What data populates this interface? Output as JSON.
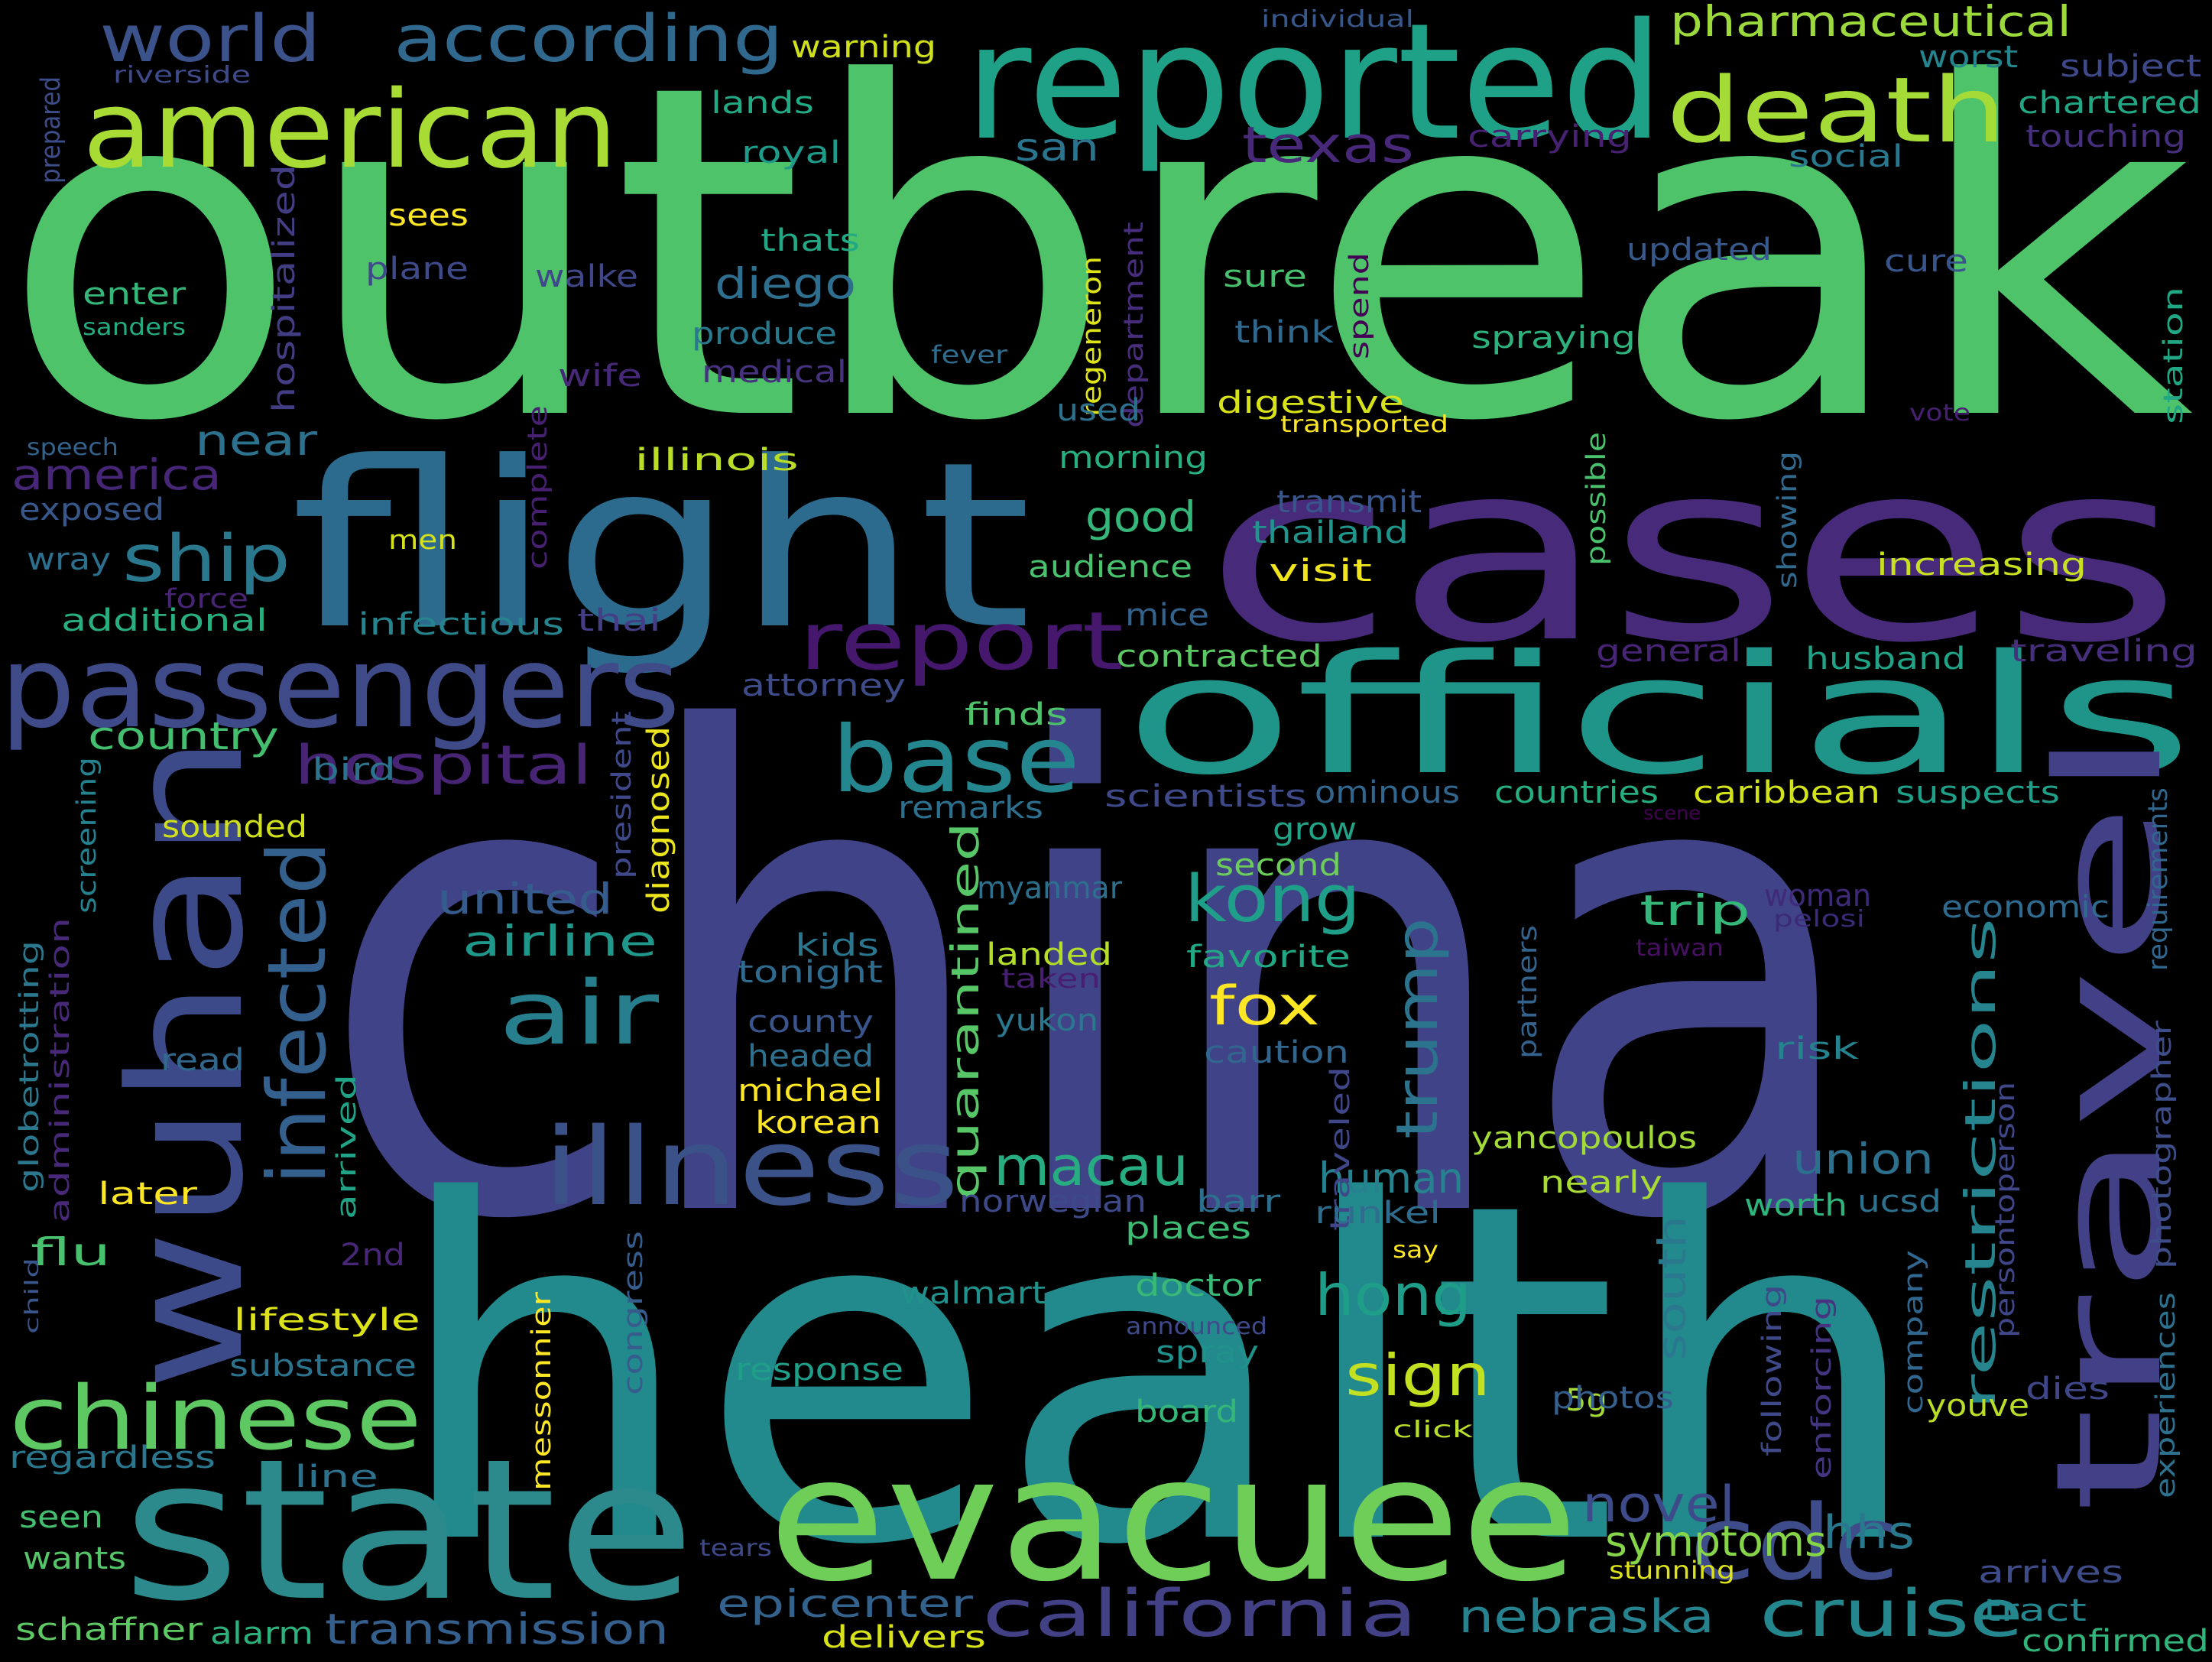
{
  "background": "#000000",
  "words": [
    {
      "text": "outbreak",
      "color": "#4fc36a"
    },
    {
      "text": "china",
      "color": "#414388"
    },
    {
      "text": "health",
      "color": "#228a8c"
    },
    {
      "text": "cases",
      "color": "#472a7a"
    },
    {
      "text": "officials",
      "color": "#1f958a"
    },
    {
      "text": "flight",
      "color": "#2c6b8d"
    },
    {
      "text": "reported",
      "color": "#1fa187"
    },
    {
      "text": "evacuee",
      "color": "#6ece58"
    },
    {
      "text": "state",
      "color": "#2c8a8c"
    },
    {
      "text": "wuhan",
      "color": "#3d4a8a"
    },
    {
      "text": "travel",
      "color": "#424086"
    },
    {
      "text": "passengers",
      "color": "#3f4a89"
    },
    {
      "text": "american",
      "color": "#a8db34"
    },
    {
      "text": "death",
      "color": "#a5db36"
    },
    {
      "text": "infected",
      "color": "#34608d"
    },
    {
      "text": "illness",
      "color": "#3b5289"
    },
    {
      "text": "chinese",
      "color": "#5ec962"
    },
    {
      "text": "report",
      "color": "#46186d"
    },
    {
      "text": "base",
      "color": "#24868e"
    },
    {
      "text": "air",
      "color": "#277f8e"
    },
    {
      "text": "cdc",
      "color": "#3e4c8a"
    },
    {
      "text": "california",
      "color": "#424186"
    },
    {
      "text": "cruise",
      "color": "#24878e"
    },
    {
      "text": "world",
      "color": "#3b528b"
    },
    {
      "text": "according",
      "color": "#31688e"
    },
    {
      "text": "hospital",
      "color": "#482475"
    },
    {
      "text": "ship",
      "color": "#2a788e"
    },
    {
      "text": "kong",
      "color": "#1f9e89"
    },
    {
      "text": "trump",
      "color": "#2c738e"
    },
    {
      "text": "macau",
      "color": "#27ad81"
    },
    {
      "text": "hong",
      "color": "#1e9d89"
    },
    {
      "text": "sign",
      "color": "#c3e021"
    },
    {
      "text": "novel",
      "color": "#3e4b8a"
    },
    {
      "text": "hhs",
      "color": "#2a788e"
    },
    {
      "text": "nebraska",
      "color": "#26828e"
    },
    {
      "text": "restrictions",
      "color": "#25848e"
    },
    {
      "text": "quarantined",
      "color": "#56c667"
    },
    {
      "text": "fox",
      "color": "#fde725"
    },
    {
      "text": "texas",
      "color": "#482878"
    },
    {
      "text": "pharmaceutical",
      "color": "#9bd93c"
    },
    {
      "text": "san",
      "color": "#2b748e"
    },
    {
      "text": "diego",
      "color": "#2e6e8e"
    },
    {
      "text": "good",
      "color": "#35b779"
    },
    {
      "text": "country",
      "color": "#44bf70"
    },
    {
      "text": "united",
      "color": "#365c8d"
    },
    {
      "text": "airline",
      "color": "#1f988b"
    },
    {
      "text": "trip",
      "color": "#35b779"
    },
    {
      "text": "human",
      "color": "#26828e"
    },
    {
      "text": "south",
      "color": "#2a788e"
    },
    {
      "text": "union",
      "color": "#2d708e"
    },
    {
      "text": "symptoms",
      "color": "#86d549"
    },
    {
      "text": "epicenter",
      "color": "#33628d"
    },
    {
      "text": "transmission",
      "color": "#355f8d"
    },
    {
      "text": "america",
      "color": "#482677"
    },
    {
      "text": "near",
      "color": "#2c728e"
    },
    {
      "text": "flu",
      "color": "#48c16e"
    },
    {
      "text": "warning",
      "color": "#d0e11c"
    },
    {
      "text": "lands",
      "color": "#23a983"
    },
    {
      "text": "royal",
      "color": "#1e9b8a"
    },
    {
      "text": "worst",
      "color": "#25858e"
    },
    {
      "text": "subject",
      "color": "#3e4989"
    },
    {
      "text": "chartered",
      "color": "#22a785"
    },
    {
      "text": "touching",
      "color": "#46307e"
    },
    {
      "text": "social",
      "color": "#2a788e"
    },
    {
      "text": "carrying",
      "color": "#482173"
    },
    {
      "text": "individual",
      "color": "#38588c"
    },
    {
      "text": "riverside",
      "color": "#3e4a89"
    },
    {
      "text": "prepared",
      "color": "#3d4d8a"
    },
    {
      "text": "hospitalized",
      "color": "#433d84"
    },
    {
      "text": "sees",
      "color": "#fde725"
    },
    {
      "text": "thats",
      "color": "#22a884"
    },
    {
      "text": "plane",
      "color": "#3e4a89"
    },
    {
      "text": "walke",
      "color": "#3f4788"
    },
    {
      "text": "enter",
      "color": "#35b779"
    },
    {
      "text": "sanders",
      "color": "#25ab82"
    },
    {
      "text": "produce",
      "color": "#29798e"
    },
    {
      "text": "fever",
      "color": "#2f6c8e"
    },
    {
      "text": "medical",
      "color": "#46327e"
    },
    {
      "text": "wife",
      "color": "#482878"
    },
    {
      "text": "updated",
      "color": "#38598c"
    },
    {
      "text": "cure",
      "color": "#39568c"
    },
    {
      "text": "sure",
      "color": "#48c16e"
    },
    {
      "text": "think",
      "color": "#30698e"
    },
    {
      "text": "spend",
      "color": "#440154"
    },
    {
      "text": "regeneron",
      "color": "#dde318"
    },
    {
      "text": "department",
      "color": "#472d7b"
    },
    {
      "text": "spraying",
      "color": "#2db27d"
    },
    {
      "text": "station",
      "color": "#22a785"
    },
    {
      "text": "used",
      "color": "#2c718e"
    },
    {
      "text": "digestive",
      "color": "#d8e219"
    },
    {
      "text": "transported",
      "color": "#fde725"
    },
    {
      "text": "vote",
      "color": "#482071"
    },
    {
      "text": "speech",
      "color": "#33638d"
    },
    {
      "text": "illinois",
      "color": "#bade28"
    },
    {
      "text": "morning",
      "color": "#29af7f"
    },
    {
      "text": "complete",
      "color": "#482071"
    },
    {
      "text": "possible",
      "color": "#4ac16d"
    },
    {
      "text": "showing",
      "color": "#31688e"
    },
    {
      "text": "exposed",
      "color": "#38588c"
    },
    {
      "text": "men",
      "color": "#d5e21a"
    },
    {
      "text": "transmit",
      "color": "#39568c"
    },
    {
      "text": "thailand",
      "color": "#1f958b"
    },
    {
      "text": "wray",
      "color": "#2d708e"
    },
    {
      "text": "visit",
      "color": "#f1e51d"
    },
    {
      "text": "audience",
      "color": "#4ac16d"
    },
    {
      "text": "increasing",
      "color": "#c8e020"
    },
    {
      "text": "force",
      "color": "#482475"
    },
    {
      "text": "additional",
      "color": "#29af7f"
    },
    {
      "text": "infectious",
      "color": "#25848e"
    },
    {
      "text": "thai",
      "color": "#433e85"
    },
    {
      "text": "mice",
      "color": "#33638d"
    },
    {
      "text": "contracted",
      "color": "#5cc863"
    },
    {
      "text": "general",
      "color": "#482576"
    },
    {
      "text": "husband",
      "color": "#20a386"
    },
    {
      "text": "traveling",
      "color": "#472f7d"
    },
    {
      "text": "attorney",
      "color": "#3e4c8a"
    },
    {
      "text": "finds",
      "color": "#4ec36b"
    },
    {
      "text": "president",
      "color": "#3f4889"
    },
    {
      "text": "diagnosed",
      "color": "#ece51b"
    },
    {
      "text": "screening",
      "color": "#26818e"
    },
    {
      "text": "bird",
      "color": "#2c738e"
    },
    {
      "text": "sounded",
      "color": "#d0e11c"
    },
    {
      "text": "remarks",
      "color": "#2d708e"
    },
    {
      "text": "scientists",
      "color": "#3e4a89"
    },
    {
      "text": "ominous",
      "color": "#31668e"
    },
    {
      "text": "countries",
      "color": "#26ad81"
    },
    {
      "text": "caribbean",
      "color": "#d2e21b"
    },
    {
      "text": "suspects",
      "color": "#1f9f88"
    },
    {
      "text": "scene",
      "color": "#440154"
    },
    {
      "text": "grow",
      "color": "#20a386"
    },
    {
      "text": "second",
      "color": "#6ccd5a"
    },
    {
      "text": "myanmar",
      "color": "#2d708e"
    },
    {
      "text": "woman",
      "color": "#3f2a7a"
    },
    {
      "text": "pelosi",
      "color": "#3b2a78"
    },
    {
      "text": "economic",
      "color": "#2f6b8e"
    },
    {
      "text": "taiwan",
      "color": "#471063"
    },
    {
      "text": "requirements",
      "color": "#31668e"
    },
    {
      "text": "globetrotting",
      "color": "#2a778e"
    },
    {
      "text": "administration",
      "color": "#482878"
    },
    {
      "text": "kids",
      "color": "#2a768e"
    },
    {
      "text": "tonight",
      "color": "#2f6b8e"
    },
    {
      "text": "landed",
      "color": "#b5de2b"
    },
    {
      "text": "favorite",
      "color": "#22a884"
    },
    {
      "text": "taken",
      "color": "#481f70"
    },
    {
      "text": "partners",
      "color": "#33638d"
    },
    {
      "text": "county",
      "color": "#3a548c"
    },
    {
      "text": "headed",
      "color": "#2d718e"
    },
    {
      "text": "yukon",
      "color": "#2a778e"
    },
    {
      "text": "caution",
      "color": "#31668e"
    },
    {
      "text": "risk",
      "color": "#25838e"
    },
    {
      "text": "read",
      "color": "#31688e"
    },
    {
      "text": "michael",
      "color": "#fde725"
    },
    {
      "text": "korean",
      "color": "#fde725"
    },
    {
      "text": "arrived",
      "color": "#20a386"
    },
    {
      "text": "traveled",
      "color": "#3f4788"
    },
    {
      "text": "yancopoulos",
      "color": "#a2da37"
    },
    {
      "text": "photographer",
      "color": "#3d4d8a"
    },
    {
      "text": "persontoperson",
      "color": "#3f4788"
    },
    {
      "text": "later",
      "color": "#fde725"
    },
    {
      "text": "norwegian",
      "color": "#3e4989"
    },
    {
      "text": "barr",
      "color": "#2d708e"
    },
    {
      "text": "runkel",
      "color": "#2f6c8e"
    },
    {
      "text": "nearly",
      "color": "#a8db34"
    },
    {
      "text": "worth",
      "color": "#2fb47c"
    },
    {
      "text": "ucsd",
      "color": "#2c718e"
    },
    {
      "text": "places",
      "color": "#3dbc74"
    },
    {
      "text": "2nd",
      "color": "#482777"
    },
    {
      "text": "say",
      "color": "#fde725"
    },
    {
      "text": "child",
      "color": "#39568c"
    },
    {
      "text": "congress",
      "color": "#365c8d"
    },
    {
      "text": "messonnier",
      "color": "#fde725"
    },
    {
      "text": "walmart",
      "color": "#21918c"
    },
    {
      "text": "doctor",
      "color": "#38b977"
    },
    {
      "text": "announced",
      "color": "#3e4a89"
    },
    {
      "text": "following",
      "color": "#3e4989"
    },
    {
      "text": "enforcing",
      "color": "#453581"
    },
    {
      "text": "company",
      "color": "#31668e"
    },
    {
      "text": "experiences",
      "color": "#2d718e"
    },
    {
      "text": "lifestyle",
      "color": "#dde318"
    },
    {
      "text": "substance",
      "color": "#2c738e"
    },
    {
      "text": "spray",
      "color": "#21918c"
    },
    {
      "text": "5g",
      "color": "#a5db36"
    },
    {
      "text": "photos",
      "color": "#355f8d"
    },
    {
      "text": "response",
      "color": "#1f9e89"
    },
    {
      "text": "board",
      "color": "#35b779"
    },
    {
      "text": "youve",
      "color": "#bade28"
    },
    {
      "text": "dies",
      "color": "#3f4788"
    },
    {
      "text": "regardless",
      "color": "#2a778e"
    },
    {
      "text": "line",
      "color": "#2c728e"
    },
    {
      "text": "click",
      "color": "#b8de29"
    },
    {
      "text": "seen",
      "color": "#44bf70"
    },
    {
      "text": "wants",
      "color": "#54c568"
    },
    {
      "text": "tears",
      "color": "#3e4989"
    },
    {
      "text": "stunning",
      "color": "#dde318"
    },
    {
      "text": "arrives",
      "color": "#3e4c8a"
    },
    {
      "text": "schaffner",
      "color": "#5ec962"
    },
    {
      "text": "alarm",
      "color": "#2db27d"
    },
    {
      "text": "delivers",
      "color": "#d8e219"
    },
    {
      "text": "tract",
      "color": "#24868e"
    },
    {
      "text": "confirmed",
      "color": "#31b57b"
    }
  ]
}
